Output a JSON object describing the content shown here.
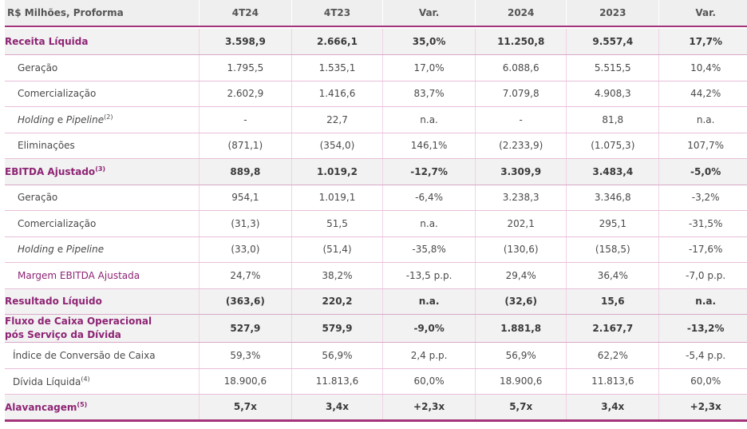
{
  "header": {
    "label": "R$ Milhões, Proforma",
    "columns": [
      "4T24",
      "4T23",
      "Var.",
      "2024",
      "2023",
      "Var."
    ]
  },
  "rows": [
    {
      "label": "Receita Líquida",
      "values": [
        "3.598,9",
        "2.666,1",
        "35,0%",
        "11.250,8",
        "9.557,4",
        "17,7%"
      ]
    },
    {
      "label": "Geração",
      "values": [
        "1.795,5",
        "1.535,1",
        "17,0%",
        "6.088,6",
        "5.515,5",
        "10,4%"
      ]
    },
    {
      "label": "Comercialização",
      "values": [
        "2.602,9",
        "1.416,6",
        "83,7%",
        "7.079,8",
        "4.908,3",
        "44,2%"
      ]
    },
    {
      "label_a": "Holding",
      "label_b": " e ",
      "label_c": "Pipeline",
      "note": "(2)",
      "values": [
        "-",
        "22,7",
        "n.a.",
        "-",
        "81,8",
        "n.a."
      ]
    },
    {
      "label": "Eliminações",
      "values": [
        "(871,1)",
        "(354,0)",
        "146,1%",
        "(2.233,9)",
        "(1.075,3)",
        "107,7%"
      ]
    },
    {
      "label": "EBITDA Ajustado",
      "note": "(3)",
      "values": [
        "889,8",
        "1.019,2",
        "-12,7%",
        "3.309,9",
        "3.483,4",
        "-5,0%"
      ]
    },
    {
      "label": "Geração",
      "values": [
        "954,1",
        "1.019,1",
        "-6,4%",
        "3.238,3",
        "3.346,8",
        "-3,2%"
      ]
    },
    {
      "label": "Comercialização",
      "values": [
        "(31,3)",
        "51,5",
        "n.a.",
        "202,1",
        "295,1",
        "-31,5%"
      ]
    },
    {
      "label_a": "Holding",
      "label_b": " e ",
      "label_c": "Pipeline",
      "values": [
        "(33,0)",
        "(51,4)",
        "-35,8%",
        "(130,6)",
        "(158,5)",
        "-17,6%"
      ]
    },
    {
      "label": "Margem EBITDA Ajustada",
      "values": [
        "24,7%",
        "38,2%",
        "-13,5 p.p.",
        "29,4%",
        "36,4%",
        "-7,0 p.p."
      ]
    },
    {
      "label": "Resultado Líquido",
      "values": [
        "(363,6)",
        "220,2",
        "n.a.",
        "(32,6)",
        "15,6",
        "n.a."
      ]
    },
    {
      "label_line1": "Fluxo de Caixa Operacional",
      "label_line2": "pós Serviço da Dívida",
      "values": [
        "527,9",
        "579,9",
        "-9,0%",
        "1.881,8",
        "2.167,7",
        "-13,2%"
      ]
    },
    {
      "label": "Índice de Conversão de Caixa",
      "values": [
        "59,3%",
        "56,9%",
        "2,4 p.p.",
        "56,9%",
        "62,2%",
        "-5,4 p.p."
      ]
    },
    {
      "label": "Dívida Líquida",
      "note": "(4)",
      "values": [
        "18.900,6",
        "11.813,6",
        "60,0%",
        "18.900,6",
        "11.813,6",
        "60,0%"
      ]
    },
    {
      "label": "Alavancagem",
      "note": "(5)",
      "values": [
        "5,7x",
        "3,4x",
        "+2,3x",
        "5,7x",
        "3,4x",
        "+2,3x"
      ]
    }
  ]
}
